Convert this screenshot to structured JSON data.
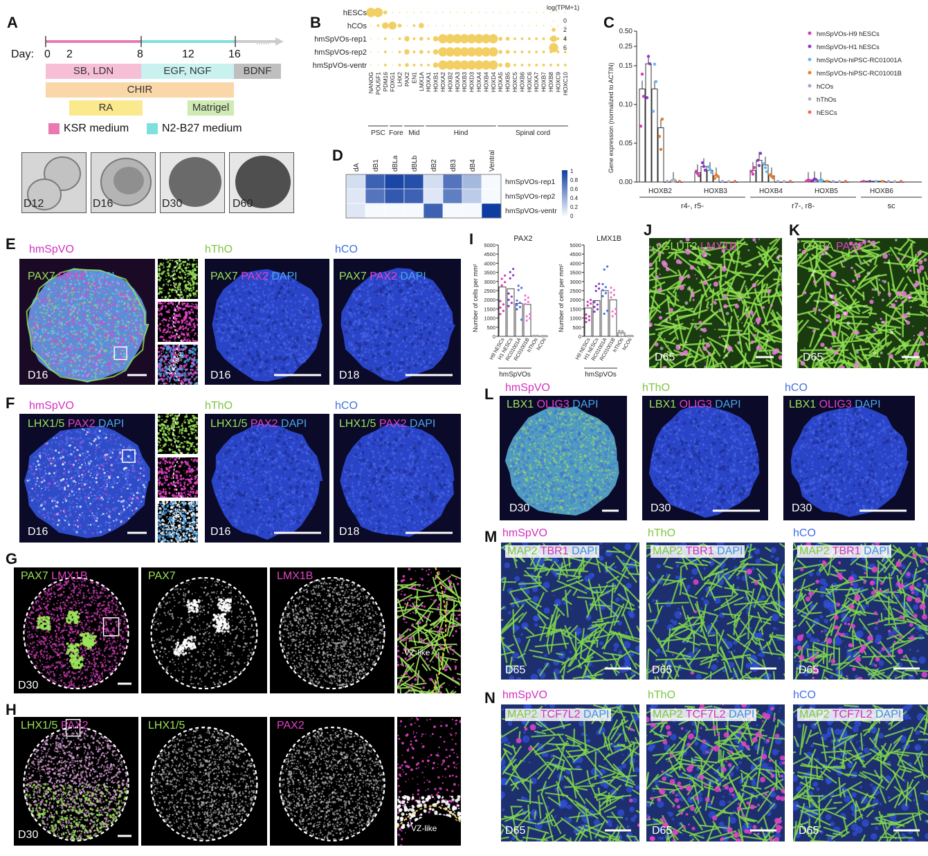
{
  "panels": {
    "A": "A",
    "B": "B",
    "C": "C",
    "D": "D",
    "E": "E",
    "F": "F",
    "G": "G",
    "H": "H",
    "I": "I",
    "J": "J",
    "K": "K",
    "L": "L",
    "M": "M",
    "N": "N"
  },
  "timeline": {
    "day_prefix": "Day:",
    "days": [
      "0",
      "2",
      "8",
      "12",
      "16"
    ],
    "dots": "......",
    "factors": {
      "sb_ldn": "SB, LDN",
      "egf_ngf": "EGF, NGF",
      "bdnf": "BDNF",
      "chir": "CHIR",
      "ra": "RA",
      "matrigel": "Matrigel"
    },
    "legend": {
      "ksr": "KSR medium",
      "n2b27": "N2-B27 medium"
    },
    "colors": {
      "ksr": "#e87ab0",
      "n2b27": "#7ee0dd",
      "sb_ldn": "#f6bfd6",
      "egf_ngf": "#c9f1f0",
      "bdnf": "#bfbfbf",
      "chir": "#fad7a8",
      "ra": "#fbe98d",
      "matrigel": "#cfeab3"
    },
    "brightfield": [
      "D12",
      "D16",
      "D30",
      "D60"
    ]
  },
  "dotplot": {
    "rows": [
      "hESCs",
      "hCOs",
      "hmSpVOs-rep1",
      "hmSpVOs-rep2",
      "hmSpVOs-ventr"
    ],
    "genes": [
      "NANOG",
      "POU5F1",
      "PDM16",
      "FOXG1",
      "LHX2",
      "PAX2",
      "EN1",
      "LMX1A",
      "HOXA1",
      "HOXB1",
      "HOXA2",
      "HOXB2",
      "HOXA3",
      "HOXB3",
      "HOXD3",
      "HOXA4",
      "HOXB4",
      "HOXD4",
      "HOXA5",
      "HOXB5",
      "HOXC5",
      "HOXB6",
      "HOXC6",
      "HOXA7",
      "HOXB7",
      "HOXB8",
      "HOXC9",
      "HOXC10"
    ],
    "groups": [
      "PSC",
      "Fore",
      "Mid",
      "Hind",
      "Spinal cord"
    ],
    "legend_title": "log(TPM+1)",
    "legend_values": [
      "0",
      "2",
      "4",
      "6"
    ],
    "color": "#f2cf63",
    "values": [
      [
        6,
        6,
        2,
        0,
        0,
        0,
        0,
        0,
        0,
        0,
        0,
        0,
        0,
        0,
        0,
        0,
        0,
        0,
        0,
        0,
        0,
        0,
        0,
        0,
        0,
        0,
        0,
        0
      ],
      [
        0,
        1,
        4,
        5,
        2,
        0,
        1,
        3,
        0,
        0,
        0,
        0,
        0,
        0,
        0,
        0,
        0,
        0,
        0,
        0,
        0,
        0,
        0,
        0,
        0,
        0,
        0,
        0
      ],
      [
        0,
        0,
        1,
        0,
        1,
        3,
        1,
        2,
        1,
        3,
        6,
        6,
        6,
        6,
        6,
        6,
        6,
        6,
        2,
        2,
        1,
        1,
        1,
        1,
        1,
        1,
        1,
        1
      ],
      [
        0,
        0,
        1,
        0,
        1,
        3,
        1,
        2,
        1,
        3,
        6,
        6,
        6,
        6,
        6,
        6,
        6,
        6,
        2,
        2,
        1,
        1,
        1,
        1,
        1,
        1,
        1,
        1
      ],
      [
        0,
        0,
        1,
        0,
        1,
        2,
        1,
        1,
        1,
        3,
        6,
        6,
        6,
        6,
        6,
        6,
        6,
        6,
        2,
        3,
        1,
        1,
        1,
        1,
        1,
        1,
        1,
        1
      ]
    ]
  },
  "chart_data": [
    {
      "type": "bar",
      "panel": "C",
      "ylabel": "Gene expression (normalized to ACTIN)",
      "yticks": [
        "0.00",
        "0.05",
        "0.10",
        "0.15",
        "0.25",
        "0.50"
      ],
      "categories": [
        "HOXB2",
        "HOXB3",
        "HOXB4",
        "HOXB5",
        "HOXB6"
      ],
      "group_labels": [
        "r4-, r5-",
        "r7-, r8-",
        "sc"
      ],
      "series": [
        {
          "name": "hmSpVOs-H9 hESCs",
          "color": "#d63ab0",
          "values": [
            0.12,
            0.012,
            0.015,
            0.002,
            0.001
          ]
        },
        {
          "name": "hmSpVOs-H1 hESCs",
          "color": "#8a38c9",
          "values": [
            0.16,
            0.02,
            0.028,
            0.003,
            0.001
          ]
        },
        {
          "name": "hmSpVOs-hiPSC-RC01001A",
          "color": "#6fb6ec",
          "values": [
            0.12,
            0.015,
            0.022,
            0.002,
            0.001
          ]
        },
        {
          "name": "hmSpVOs-hiPSC-RC01001B",
          "color": "#ee7a22",
          "values": [
            0.07,
            0.008,
            0.008,
            0.001,
            0.001
          ]
        },
        {
          "name": "hCOs",
          "color": "#a89fd8",
          "values": [
            0.0,
            0.0,
            0.0,
            0.0,
            0.0
          ]
        },
        {
          "name": "hThOs",
          "color": "#b5b5b5",
          "values": [
            0.002,
            0.0,
            0.0,
            0.0,
            0.0
          ]
        },
        {
          "name": "hESCs",
          "color": "#f0684a",
          "values": [
            0.0,
            0.0,
            0.0,
            0.0,
            0.0
          ]
        }
      ]
    },
    {
      "type": "bar",
      "panel": "I",
      "title": "PAX2",
      "ylabel": "Number of cells per mm²",
      "ylim": [
        0,
        5000
      ],
      "yticks": [
        "0",
        "500",
        "1000",
        "1500",
        "2000",
        "2500",
        "3000",
        "3500",
        "4000",
        "4500",
        "5000"
      ],
      "categories": [
        "H9 hESCs",
        "H1 hESCs",
        "RC01001A",
        "RC01001B",
        "hThOs",
        "hCOs"
      ],
      "group_label": "hmSpVOs",
      "values": [
        2700,
        2600,
        1800,
        1750,
        20,
        10
      ]
    },
    {
      "type": "bar",
      "panel": "I",
      "title": "LMX1B",
      "ylabel": "Number of cells per mm²",
      "ylim": [
        0,
        5000
      ],
      "yticks": [
        "0",
        "500",
        "1000",
        "1500",
        "2000",
        "2500",
        "3000",
        "3500",
        "4000",
        "4500",
        "5000"
      ],
      "categories": [
        "H9 hESCs",
        "H1 hESCs",
        "RC01001A",
        "RC01001B",
        "hThOs",
        "hCOs"
      ],
      "group_label": "hmSpVOs",
      "values": [
        1550,
        1950,
        2500,
        2000,
        200,
        20
      ]
    }
  ],
  "heatmap": {
    "columns": [
      "dA",
      "dB1",
      "dBLa",
      "dBLb",
      "dB2",
      "dB3",
      "dB4",
      "Ventral"
    ],
    "rows": [
      "hmSpVOs-rep1",
      "hmSpVOs-rep2",
      "hmSpVOs-ventr"
    ],
    "legend_values": [
      "1",
      "0.8",
      "0.6",
      "0.4",
      "0.2",
      "0"
    ],
    "values": [
      [
        0.15,
        0.8,
        0.95,
        0.9,
        0.15,
        0.7,
        0.35,
        0.0
      ],
      [
        0.1,
        0.7,
        0.85,
        0.8,
        0.1,
        0.65,
        0.25,
        0.0
      ],
      [
        0.1,
        0.0,
        0.0,
        0.0,
        0.8,
        0.0,
        0.0,
        1.0
      ]
    ]
  },
  "micrographs": {
    "E": {
      "titles": [
        "hmSpVO",
        "hThO",
        "hCO"
      ],
      "stain": [
        "PAX7",
        "PAX2",
        "DAPI"
      ],
      "days": [
        "D16",
        "D16",
        "D18"
      ],
      "inset": "VZ-like"
    },
    "F": {
      "titles": [
        "hmSpVO",
        "hThO",
        "hCO"
      ],
      "stain": [
        "LHX1/5",
        "PAX2",
        "DAPI"
      ],
      "days": [
        "D16",
        "D16",
        "D18"
      ],
      "inset": "VZ-like"
    },
    "G": {
      "labels": [
        "PAX7 LMX1B",
        "PAX7",
        "LMX1B"
      ],
      "stain_a": "PAX7",
      "stain_b": "LMX1B",
      "day": "D30",
      "inset": "VZ-like"
    },
    "H": {
      "labels": [
        "LHX1/5 PAX2",
        "LHX1/5",
        "PAX2"
      ],
      "stain_a": "LHX1/5",
      "stain_b": "PAX2",
      "day": "D30",
      "inset": "VZ-like"
    },
    "J": {
      "stain_a": "vGLUT2",
      "stain_b": "LMX1B",
      "day": "D65"
    },
    "K": {
      "stain_a": "GABA",
      "stain_b": "PAX2",
      "day": "D65"
    },
    "L": {
      "titles": [
        "hmSpVO",
        "hThO",
        "hCO"
      ],
      "stain": [
        "LBX1",
        "OLIG3",
        "DAPI"
      ],
      "days": [
        "D30",
        "D30",
        "D30"
      ]
    },
    "M": {
      "titles": [
        "hmSpVO",
        "hThO",
        "hCO"
      ],
      "stain": [
        "MAP2",
        "TBR1",
        "DAPI"
      ],
      "days": [
        "D65",
        "D65",
        "D65"
      ]
    },
    "N": {
      "titles": [
        "hmSpVO",
        "hThO",
        "hCO"
      ],
      "stain": [
        "MAP2",
        "TCF7L2",
        "DAPI"
      ],
      "days": [
        "D65",
        "D65",
        "D65"
      ]
    }
  },
  "colors": {
    "green": "#9be35a",
    "magenta": "#e443c8",
    "blue": "#4aa7ef",
    "title_magenta": "#d42fbf",
    "title_green": "#7cc640",
    "title_blue": "#3f6fe0"
  }
}
